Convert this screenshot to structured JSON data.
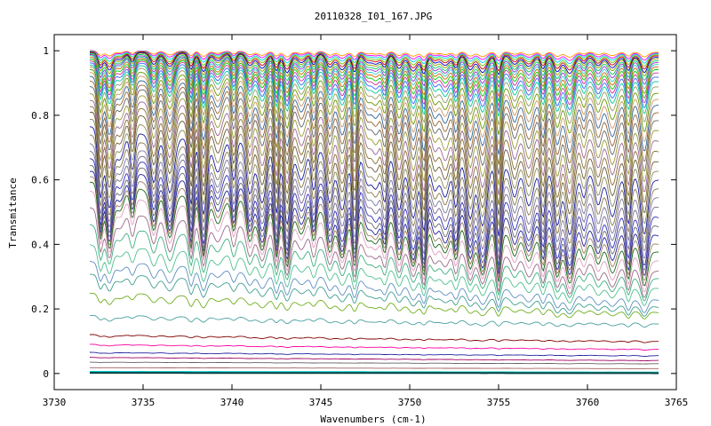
{
  "chart_data": {
    "type": "line",
    "title": "20110328_I01_167.JPG",
    "xlabel": "Wavenumbers (cm-1)",
    "ylabel": "Transmitance",
    "xlim": [
      3730,
      3765
    ],
    "ylim": [
      -0.05,
      1.05
    ],
    "x_ticks": [
      3730,
      3735,
      3740,
      3745,
      3750,
      3755,
      3760,
      3765
    ],
    "x_tick_labels": [
      "3730",
      "3735",
      "3740",
      "3745",
      "3750",
      "3755",
      "3760",
      "3765"
    ],
    "y_ticks": [
      0,
      0.2,
      0.4,
      0.6,
      0.8,
      1
    ],
    "y_tick_labels": [
      "0",
      "0.2",
      "0.4",
      "0.6",
      "0.8",
      "1"
    ],
    "x_range": [
      3732,
      3764
    ],
    "grid": false,
    "legend": "none",
    "absorption_lines_cm1": [
      3732.6,
      3733.1,
      3733.7,
      3734.4,
      3735.6,
      3736.5,
      3737.7,
      3738.4,
      3739.2,
      3740.1,
      3741.0,
      3741.7,
      3742.5,
      3743.1,
      3743.9,
      3744.6,
      3745.5,
      3746.2,
      3746.9,
      3747.6,
      3748.1,
      3748.6,
      3749.4,
      3750.2,
      3750.8,
      3751.4,
      3752.0,
      3752.6,
      3753.4,
      3754.1,
      3755.0,
      3755.9,
      3756.7,
      3757.5,
      3758.3,
      3759.0,
      3759.8,
      3760.6,
      3761.4,
      3762.3,
      3763.2
    ],
    "series": [
      {
        "start": 1.0,
        "end": 0.995,
        "depth": 0.02,
        "color": "#ff9900"
      },
      {
        "start": 1.0,
        "end": 0.992,
        "depth": 0.03,
        "color": "#ff00ff"
      },
      {
        "start": 0.999,
        "end": 0.99,
        "depth": 0.04,
        "color": "#00ccff"
      },
      {
        "start": 0.998,
        "end": 0.987,
        "depth": 0.05,
        "color": "#66cc00"
      },
      {
        "start": 0.997,
        "end": 0.984,
        "depth": 0.06,
        "color": "#cc0000"
      },
      {
        "start": 0.995,
        "end": 0.98,
        "depth": 0.07,
        "color": "#0000cc"
      },
      {
        "start": 0.993,
        "end": 0.976,
        "depth": 0.08,
        "color": "#999900"
      },
      {
        "start": 0.99,
        "end": 0.97,
        "depth": 0.09,
        "color": "#00cc66"
      },
      {
        "start": 0.987,
        "end": 0.964,
        "depth": 0.1,
        "color": "#9933cc"
      },
      {
        "start": 0.984,
        "end": 0.957,
        "depth": 0.11,
        "color": "#33cccc"
      },
      {
        "start": 0.98,
        "end": 0.949,
        "depth": 0.12,
        "color": "#cc6600"
      },
      {
        "start": 0.975,
        "end": 0.94,
        "depth": 0.13,
        "color": "#00cc00"
      },
      {
        "start": 0.97,
        "end": 0.93,
        "depth": 0.14,
        "color": "#cc3399"
      },
      {
        "start": 0.964,
        "end": 0.918,
        "depth": 0.15,
        "color": "#3366ff"
      },
      {
        "start": 0.957,
        "end": 0.905,
        "depth": 0.16,
        "color": "#00cc99"
      },
      {
        "start": 0.95,
        "end": 0.89,
        "depth": 0.18,
        "color": "#999966"
      },
      {
        "start": 0.94,
        "end": 0.87,
        "depth": 0.2,
        "color": "#669900"
      },
      {
        "start": 0.93,
        "end": 0.85,
        "depth": 0.22,
        "color": "#cc9966"
      },
      {
        "start": 0.918,
        "end": 0.83,
        "depth": 0.24,
        "color": "#336699"
      },
      {
        "start": 0.905,
        "end": 0.805,
        "depth": 0.26,
        "color": "#996633"
      },
      {
        "start": 0.89,
        "end": 0.78,
        "depth": 0.28,
        "color": "#666666"
      },
      {
        "start": 0.87,
        "end": 0.75,
        "depth": 0.3,
        "color": "#999933"
      },
      {
        "start": 0.85,
        "end": 0.72,
        "depth": 0.32,
        "color": "#996699"
      },
      {
        "start": 0.83,
        "end": 0.69,
        "depth": 0.34,
        "color": "#8b6f2e"
      },
      {
        "start": 0.81,
        "end": 0.66,
        "depth": 0.36,
        "color": "#6d5a3a"
      },
      {
        "start": 0.785,
        "end": 0.63,
        "depth": 0.38,
        "color": "#8c8c5a"
      },
      {
        "start": 0.76,
        "end": 0.6,
        "depth": 0.4,
        "color": "#1a1aa0"
      },
      {
        "start": 0.735,
        "end": 0.57,
        "depth": 0.41,
        "color": "#8a7a4a"
      },
      {
        "start": 0.71,
        "end": 0.54,
        "depth": 0.42,
        "color": "#7a7aa0"
      },
      {
        "start": 0.69,
        "end": 0.51,
        "depth": 0.43,
        "color": "#7a6a8a"
      },
      {
        "start": 0.67,
        "end": 0.48,
        "depth": 0.44,
        "color": "#3030c0"
      },
      {
        "start": 0.65,
        "end": 0.455,
        "depth": 0.44,
        "color": "#6a6a6a"
      },
      {
        "start": 0.63,
        "end": 0.43,
        "depth": 0.44,
        "color": "#2020a0"
      },
      {
        "start": 0.61,
        "end": 0.405,
        "depth": 0.43,
        "color": "#a08060"
      },
      {
        "start": 0.59,
        "end": 0.38,
        "depth": 0.42,
        "color": "#1a6a1a"
      },
      {
        "start": 0.56,
        "end": 0.35,
        "depth": 0.4,
        "color": "#e0a0c0"
      },
      {
        "start": 0.51,
        "end": 0.315,
        "depth": 0.36,
        "color": "#9a6a8a"
      },
      {
        "start": 0.46,
        "end": 0.29,
        "depth": 0.32,
        "color": "#40b080"
      },
      {
        "start": 0.4,
        "end": 0.26,
        "depth": 0.28,
        "color": "#50c090"
      },
      {
        "start": 0.35,
        "end": 0.225,
        "depth": 0.25,
        "color": "#6090c0"
      },
      {
        "start": 0.31,
        "end": 0.205,
        "depth": 0.22,
        "color": "#40a090"
      },
      {
        "start": 0.25,
        "end": 0.19,
        "depth": 0.18,
        "color": "#70b020"
      },
      {
        "start": 0.18,
        "end": 0.155,
        "depth": 0.12,
        "color": "#4aa0a0"
      },
      {
        "start": 0.12,
        "end": 0.1,
        "depth": 0.07,
        "color": "#800000"
      },
      {
        "start": 0.09,
        "end": 0.075,
        "depth": 0.05,
        "color": "#ff00a0"
      },
      {
        "start": 0.065,
        "end": 0.055,
        "depth": 0.04,
        "color": "#2020a0"
      },
      {
        "start": 0.05,
        "end": 0.04,
        "depth": 0.03,
        "color": "#a00060"
      },
      {
        "start": 0.035,
        "end": 0.03,
        "depth": 0.02,
        "color": "#606060"
      },
      {
        "start": 0.018,
        "end": 0.015,
        "depth": 0.01,
        "color": "#a06060"
      },
      {
        "start": 0.005,
        "end": 0.003,
        "depth": 0.005,
        "color": "#00cccc"
      },
      {
        "start": 0.002,
        "end": 0.001,
        "depth": 0.002,
        "color": "#004040"
      }
    ]
  }
}
